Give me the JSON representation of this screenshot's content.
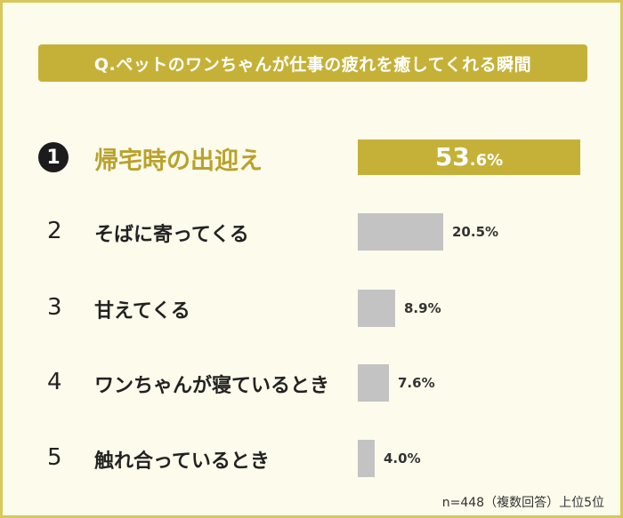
{
  "title": "Q.ペットのワンちゃんが仕事の疲れを癒してくれる瞬間",
  "footnote": "n=448（複数回答）上位5位",
  "colors": {
    "accent": "#c6b138",
    "bar": "#c3c3c3",
    "background": "#fdfbec",
    "border": "#d8c75a"
  },
  "chart_data": {
    "type": "bar",
    "orientation": "horizontal",
    "title": "Q.ペットのワンちゃんが仕事の疲れを癒してくれる瞬間",
    "categories": [
      "帰宅時の出迎え",
      "そばに寄ってくる",
      "甘えてくる",
      "ワンちゃんが寝ているとき",
      "触れ合っているとき"
    ],
    "ranks": [
      "1",
      "2",
      "3",
      "4",
      "5"
    ],
    "values": [
      53.6,
      20.5,
      8.9,
      7.6,
      4.0
    ],
    "value_labels": [
      "53.6%",
      "20.5%",
      "8.9%",
      "7.6%",
      "4.0%"
    ],
    "top_value_parts": [
      "53",
      ".6%"
    ],
    "unit": "%",
    "xlim": [
      0,
      100
    ],
    "grid": false
  }
}
